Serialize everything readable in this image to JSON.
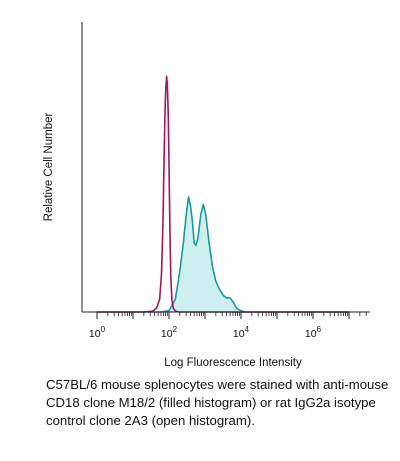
{
  "chart_data": {
    "type": "line",
    "title": "",
    "xlabel": "Log Fluorescence Intensity",
    "ylabel": "Relative Cell Number",
    "x_scale": "log",
    "xlim": [
      1,
      10000000
    ],
    "ylim": [
      0,
      100
    ],
    "grid": false,
    "legend": "none",
    "x_ticks": [
      {
        "value": 1,
        "base": "10",
        "exp": "0"
      },
      {
        "value": 100,
        "base": "10",
        "exp": "2"
      },
      {
        "value": 10000,
        "base": "10",
        "exp": "4"
      },
      {
        "value": 1000000,
        "base": "10",
        "exp": "6"
      }
    ],
    "series": [
      {
        "style": "open",
        "color": "#a0185a",
        "points": [
          [
            1,
            0
          ],
          [
            20,
            0
          ],
          [
            35,
            0.3
          ],
          [
            45,
            1.5
          ],
          [
            55,
            5
          ],
          [
            62,
            15
          ],
          [
            68,
            35
          ],
          [
            73,
            60
          ],
          [
            78,
            80
          ],
          [
            82,
            88
          ],
          [
            86,
            92
          ],
          [
            90,
            89
          ],
          [
            95,
            78
          ],
          [
            100,
            58
          ],
          [
            106,
            32
          ],
          [
            112,
            14
          ],
          [
            120,
            5
          ],
          [
            132,
            1.5
          ],
          [
            150,
            0.3
          ],
          [
            190,
            0
          ],
          [
            10000000,
            0
          ]
        ]
      },
      {
        "style": "filled",
        "color": "#1a9a9a",
        "fill": "#cdeff0",
        "points": [
          [
            1,
            0
          ],
          [
            60,
            0
          ],
          [
            100,
            0.5
          ],
          [
            150,
            5
          ],
          [
            200,
            16
          ],
          [
            250,
            27
          ],
          [
            300,
            38
          ],
          [
            350,
            45
          ],
          [
            400,
            41
          ],
          [
            450,
            35
          ],
          [
            500,
            27
          ],
          [
            560,
            26
          ],
          [
            640,
            29
          ],
          [
            760,
            38
          ],
          [
            900,
            42
          ],
          [
            1050,
            38
          ],
          [
            1300,
            27
          ],
          [
            1600,
            18
          ],
          [
            2000,
            12
          ],
          [
            2500,
            9
          ],
          [
            3200,
            6.5
          ],
          [
            4000,
            5.5
          ],
          [
            5000,
            5.5
          ],
          [
            6000,
            4
          ],
          [
            7500,
            1.5
          ],
          [
            10000,
            0.5
          ],
          [
            13000,
            0
          ],
          [
            10000000,
            0
          ]
        ]
      }
    ]
  },
  "caption": {
    "line1": "C57BL/6 mouse splenocytes were stained with anti-mouse",
    "line2": "CD18 clone M18/2 (filled histogram) or rat IgG2a isotype",
    "line3": "control clone 2A3 (open histogram)."
  }
}
